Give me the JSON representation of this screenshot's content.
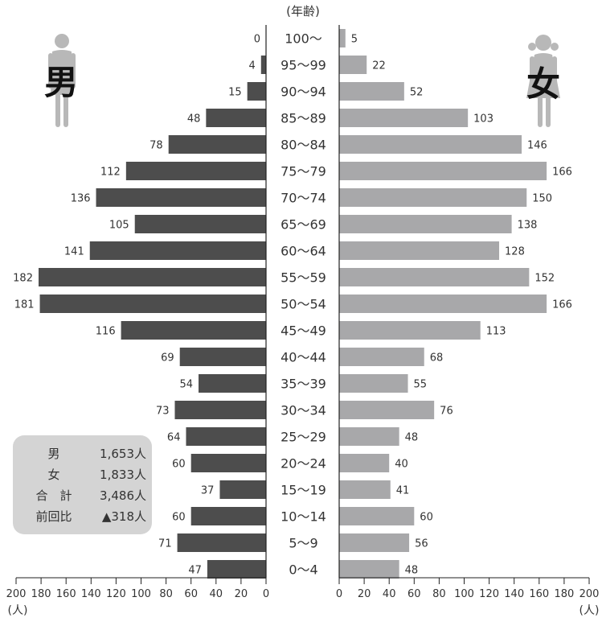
{
  "chart_data": {
    "type": "bar",
    "title": "(年齢)",
    "categories": [
      "100〜",
      "95〜99",
      "90〜94",
      "85〜89",
      "80〜84",
      "75〜79",
      "70〜74",
      "65〜69",
      "60〜64",
      "55〜59",
      "50〜54",
      "45〜49",
      "40〜44",
      "35〜39",
      "30〜34",
      "25〜29",
      "20〜24",
      "15〜19",
      "10〜14",
      "5〜9",
      "0〜4"
    ],
    "series": [
      {
        "name": "男",
        "values": [
          0,
          4,
          15,
          48,
          78,
          112,
          136,
          105,
          141,
          182,
          181,
          116,
          69,
          54,
          73,
          64,
          60,
          37,
          60,
          71,
          47
        ]
      },
      {
        "name": "女",
        "values": [
          5,
          22,
          52,
          103,
          146,
          166,
          150,
          138,
          128,
          152,
          166,
          113,
          68,
          55,
          76,
          48,
          40,
          41,
          60,
          56,
          48
        ]
      }
    ],
    "xlim": [
      0,
      200
    ],
    "ticks": [
      "0",
      "20",
      "40",
      "60",
      "80",
      "100",
      "120",
      "140",
      "160",
      "180",
      "200"
    ],
    "xlabel": "(人)",
    "colors": {
      "male": "#4d4d4d",
      "female": "#a8a8aa",
      "figure": "#b8b8b8",
      "panel": "#d4d4d4"
    }
  },
  "labels": {
    "male": "男",
    "female": "女"
  },
  "summary": [
    {
      "key": "男",
      "value": "1,653人"
    },
    {
      "key": "女",
      "value": "1,833人"
    },
    {
      "key": "合　計",
      "value": "3,486人"
    },
    {
      "key": "前回比",
      "value": "▲318人"
    }
  ],
  "icons": {
    "male": "male-figure-icon",
    "female": "female-figure-icon"
  }
}
